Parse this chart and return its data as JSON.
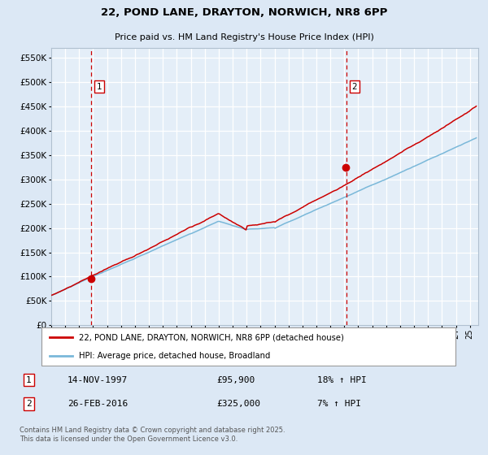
{
  "title": "22, POND LANE, DRAYTON, NORWICH, NR8 6PP",
  "subtitle": "Price paid vs. HM Land Registry's House Price Index (HPI)",
  "legend_line1": "22, POND LANE, DRAYTON, NORWICH, NR8 6PP (detached house)",
  "legend_line2": "HPI: Average price, detached house, Broadland",
  "sale1_date": "14-NOV-1997",
  "sale1_price": 95900,
  "sale1_hpi": "18% ↑ HPI",
  "sale1_year": 1997.87,
  "sale2_date": "26-FEB-2016",
  "sale2_price": 325000,
  "sale2_hpi": "7% ↑ HPI",
  "sale2_year": 2016.13,
  "ylim_min": 0,
  "ylim_max": 570000,
  "ytick_step": 50000,
  "hpi_color": "#7ab8d9",
  "price_color": "#cc0000",
  "vline_color": "#cc0000",
  "bg_color": "#dce8f5",
  "plot_bg": "#e4eef8",
  "grid_color": "#c8d8e8",
  "footer": "Contains HM Land Registry data © Crown copyright and database right 2025.\nThis data is licensed under the Open Government Licence v3.0."
}
